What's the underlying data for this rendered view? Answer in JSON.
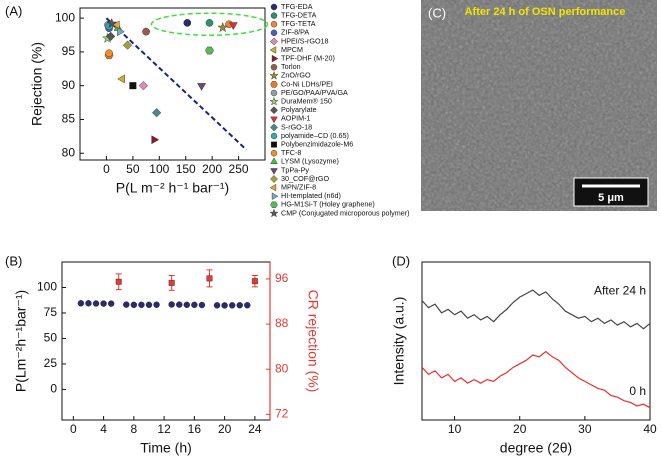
{
  "chart_data": [
    {
      "type": "scatter",
      "panel": "(A)",
      "xlabel": "P(L m⁻² h⁻¹ bar⁻¹)",
      "ylabel": "Rejection (%)",
      "xlim": [
        -50,
        300
      ],
      "ylim": [
        79,
        101.5
      ],
      "xticks": [
        0,
        50,
        100,
        150,
        200,
        250
      ],
      "yticks": [
        80,
        85,
        90,
        95,
        100
      ],
      "reference_line": {
        "x": [
          0,
          265
        ],
        "y": [
          100,
          80.5
        ],
        "color": "#1a237e"
      },
      "series": [
        {
          "name": "TFG-EDA",
          "color": "#2e2a6e",
          "marker": "circle",
          "x": [
            153
          ],
          "values": [
            99.3
          ]
        },
        {
          "name": "TFG-DETA",
          "color": "#2f8f6f",
          "marker": "circle",
          "x": [
            195
          ],
          "values": [
            99.3
          ]
        },
        {
          "name": "TFG-TETA",
          "color": "#e8893a",
          "marker": "circle",
          "x": [
            232
          ],
          "values": [
            99.1
          ]
        },
        {
          "name": "ZIF-8/PA",
          "color": "#4b5fb5",
          "marker": "circle",
          "x": [
            5
          ],
          "values": [
            98.5
          ]
        },
        {
          "name": "HPEI/S-rGO18",
          "color": "#d98cb8",
          "marker": "diamond",
          "x": [
            70
          ],
          "values": [
            90
          ]
        },
        {
          "name": "MPCM",
          "color": "#c8b02a",
          "marker": "tri-left",
          "x": [
            30
          ],
          "values": [
            91
          ]
        },
        {
          "name": "TPF-DHF (M-20)",
          "color": "#8b1a2a",
          "marker": "tri-right",
          "x": [
            90
          ],
          "values": [
            82
          ]
        },
        {
          "name": "Torlon",
          "color": "#9c5a4a",
          "marker": "circle",
          "x": [
            75
          ],
          "values": [
            98
          ]
        },
        {
          "name": "ZnO/rGO",
          "color": "#9a8a3a",
          "marker": "star",
          "x": [
            220
          ],
          "values": [
            98.6
          ]
        },
        {
          "name": "Co-Ni LDHs/PEI",
          "color": "#f07820",
          "marker": "hexagon",
          "x": [
            5
          ],
          "values": [
            94.5
          ]
        },
        {
          "name": "PE/GO/PAA/PVA/GA",
          "color": "#8aa0aa",
          "marker": "circle",
          "x": [
            3
          ],
          "values": [
            99
          ]
        },
        {
          "name": "DuraMem® 150",
          "color": "#8fd26a",
          "marker": "star",
          "x": [
            2
          ],
          "values": [
            97
          ]
        },
        {
          "name": "Polyarylate",
          "color": "#555555",
          "marker": "diamond",
          "x": [
            8
          ],
          "values": [
            97.3
          ]
        },
        {
          "name": "AOPIM-1",
          "color": "#e03030",
          "marker": "tri-down",
          "x": [
            240
          ],
          "values": [
            99
          ]
        },
        {
          "name": "S-rGO-18",
          "color": "#4a8a8a",
          "marker": "diamond",
          "x": [
            95
          ],
          "values": [
            86
          ]
        },
        {
          "name": "polyamide–CD (0.65)",
          "color": "#33aaaa",
          "marker": "circle",
          "x": [
            5
          ],
          "values": [
            98.8
          ]
        },
        {
          "name": "Polybenzimidazole-M6",
          "color": "#111111",
          "marker": "square",
          "x": [
            50
          ],
          "values": [
            90
          ]
        },
        {
          "name": "TFC-8",
          "color": "#f09020",
          "marker": "circle",
          "x": [
            5
          ],
          "values": [
            94.8
          ]
        },
        {
          "name": "LYSM (Lysozyme)",
          "color": "#33cc33",
          "marker": "tri-up",
          "x": [
            22
          ],
          "values": [
            98.5
          ]
        },
        {
          "name": "TpPa-Py",
          "color": "#6a4a7a",
          "marker": "tri-down",
          "x": [
            180
          ],
          "values": [
            90
          ]
        },
        {
          "name": "30_COF@rGO",
          "color": "#a0a040",
          "marker": "diamond",
          "x": [
            40
          ],
          "values": [
            96
          ]
        },
        {
          "name": "MPN/ZIF-8",
          "color": "#e8a040",
          "marker": "tri-left",
          "x": [
            20
          ],
          "values": [
            99
          ]
        },
        {
          "name": "HI-templated (n6d)",
          "color": "#77aabb",
          "marker": "tri-right",
          "x": [
            25
          ],
          "values": [
            98
          ]
        },
        {
          "name": "HG-M1Si-T (Holey graphene)",
          "color": "#55bb55",
          "marker": "hexagon",
          "x": [
            195
          ],
          "values": [
            95.2
          ]
        },
        {
          "name": "CMP (Conjugated microporous polymer)",
          "color": "#555555",
          "marker": "star",
          "x": [
            10
          ],
          "values": [
            99.2
          ]
        }
      ]
    },
    {
      "type": "scatter",
      "panel": "(B)",
      "xlabel": "Time (h)",
      "ylabel": "P(Lm⁻²h⁻¹bar⁻¹)",
      "y2label": "CR rejection (%)",
      "xlim": [
        -1.5,
        26
      ],
      "ylim": [
        -30,
        125
      ],
      "y2lim": [
        71,
        99
      ],
      "xticks": [
        0,
        4,
        8,
        12,
        16,
        20,
        24
      ],
      "yticks": [
        0,
        25,
        50,
        75,
        100
      ],
      "y2ticks": [
        72,
        80,
        88,
        96
      ],
      "y2color": "#e53935",
      "series": [
        {
          "name": "P",
          "color": "#2a2a6e",
          "marker": "circle",
          "x": [
            1,
            2,
            3,
            4,
            5,
            7,
            8,
            9,
            10,
            11,
            13,
            14,
            15,
            16,
            17,
            19,
            20,
            21,
            22,
            23
          ],
          "values": [
            84.5,
            84.5,
            84.3,
            84.2,
            84.2,
            83.2,
            83,
            83,
            83,
            83.1,
            83.3,
            83.2,
            83,
            83,
            82.8,
            82.5,
            82.4,
            82.5,
            82.6,
            82.6
          ]
        },
        {
          "name": "CR rejection",
          "color": "#e53935",
          "marker": "square",
          "axis": "y2",
          "x": [
            6,
            13,
            18,
            24
          ],
          "values": [
            95.5,
            95.3,
            96.1,
            95.6
          ],
          "errors": [
            1.4,
            1.3,
            1.5,
            1.0
          ]
        }
      ]
    },
    {
      "type": "line",
      "panel": "(D)",
      "xlabel": "degree (2θ)",
      "ylabel": "Intensity (a.u.)",
      "xlim": [
        5,
        40
      ],
      "ylim": [
        0,
        0.9
      ],
      "xticks": [
        10,
        20,
        30,
        40
      ],
      "x": [
        5,
        6,
        7,
        8,
        9,
        10,
        11,
        12,
        13,
        14,
        15,
        16,
        17,
        18,
        19,
        20,
        21,
        22,
        23,
        24,
        25,
        26,
        27,
        28,
        29,
        30,
        31,
        32,
        33,
        34,
        35,
        36,
        37,
        38,
        39,
        40
      ],
      "series": [
        {
          "name": "After 24 h",
          "color": "#444444",
          "values": [
            0.68,
            0.64,
            0.66,
            0.61,
            0.63,
            0.6,
            0.62,
            0.58,
            0.6,
            0.57,
            0.59,
            0.56,
            0.6,
            0.63,
            0.67,
            0.7,
            0.72,
            0.74,
            0.71,
            0.73,
            0.69,
            0.66,
            0.62,
            0.6,
            0.58,
            0.59,
            0.56,
            0.58,
            0.55,
            0.57,
            0.54,
            0.56,
            0.53,
            0.55,
            0.52,
            0.55
          ]
        },
        {
          "name": "0 h",
          "color": "#e83030",
          "values": [
            0.3,
            0.26,
            0.28,
            0.24,
            0.26,
            0.22,
            0.24,
            0.21,
            0.23,
            0.21,
            0.23,
            0.22,
            0.25,
            0.27,
            0.3,
            0.32,
            0.34,
            0.37,
            0.36,
            0.39,
            0.36,
            0.34,
            0.3,
            0.27,
            0.24,
            0.22,
            0.2,
            0.18,
            0.17,
            0.14,
            0.13,
            0.11,
            0.1,
            0.08,
            0.09,
            0.07
          ]
        }
      ]
    }
  ],
  "image": {
    "panel": "(C)",
    "caption": "After 24 h of OSN performance",
    "scale_bar": "5 μm"
  }
}
